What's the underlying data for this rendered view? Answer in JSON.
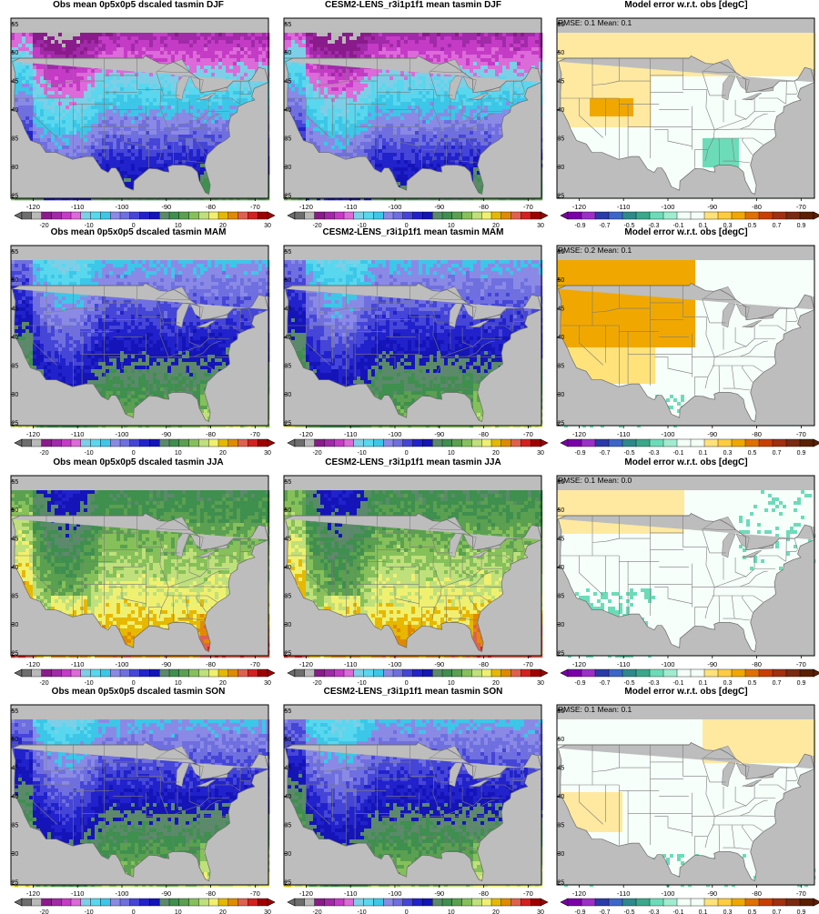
{
  "figure": {
    "variable": "tasmin",
    "obs_title_template": "Obs mean 0p5x0p5 dscaled tasmin {season}",
    "model_title_template": "CESM2-LENS_r3i1p1f1 mean tasmin {season}",
    "diff_title": "Model error w.r.t. obs [degC]"
  },
  "seasons": [
    {
      "name": "DJF",
      "obs_title": "Obs mean 0p5x0p5 dscaled tasmin DJF",
      "model_title": "CESM2-LENS_r3i1p1f1 mean tasmin DJF",
      "diff_title": "Model error w.r.t. obs [degC]",
      "stats_text": "RMSE: 0.1  Mean: 0.1",
      "rmse": 0.1,
      "mean": 0.1
    },
    {
      "name": "MAM",
      "obs_title": "Obs mean 0p5x0p5 dscaled tasmin MAM",
      "model_title": "CESM2-LENS_r3i1p1f1 mean tasmin MAM",
      "diff_title": "Model error w.r.t. obs [degC]",
      "stats_text": "RMSE: 0.2  Mean: 0.1",
      "rmse": 0.2,
      "mean": 0.1
    },
    {
      "name": "JJA",
      "obs_title": "Obs mean 0p5x0p5 dscaled tasmin JJA",
      "model_title": "CESM2-LENS_r3i1p1f1 mean tasmin JJA",
      "diff_title": "Model error w.r.t. obs [degC]",
      "stats_text": "RMSE: 0.1  Mean: 0.0",
      "rmse": 0.1,
      "mean": 0.0
    },
    {
      "name": "SON",
      "obs_title": "Obs mean 0p5x0p5 dscaled tasmin SON",
      "model_title": "CESM2-LENS_r3i1p1f1 mean tasmin SON",
      "diff_title": "Model error w.r.t. obs [degC]",
      "stats_text": "RMSE: 0.1  Mean: 0.1",
      "rmse": 0.1,
      "mean": 0.1
    }
  ],
  "chart_data": {
    "type": "heatmap",
    "map_extent": {
      "lon": [
        -125,
        -67
      ],
      "lat": [
        24.5,
        56
      ]
    },
    "x_ticks": [
      "-120",
      "-110",
      "-100",
      "-90",
      "-80",
      "-70"
    ],
    "x_tick_values": [
      -120,
      -110,
      -100,
      -90,
      -80,
      -70
    ],
    "y_ticks": [
      "25",
      "30",
      "35",
      "40",
      "45",
      "50",
      "55"
    ],
    "y_tick_values": [
      25,
      30,
      35,
      40,
      45,
      50,
      55
    ],
    "temperature_colorbar": {
      "labels": [
        "-20",
        "-10",
        "0",
        "10",
        "20",
        "30"
      ],
      "label_values": [
        -20,
        -10,
        0,
        10,
        20,
        30
      ],
      "boundaries": [
        -25,
        -22.5,
        -20,
        -17.5,
        -15,
        -12.5,
        -10,
        -7.5,
        -5,
        -2.5,
        0,
        2.5,
        5,
        7.5,
        10,
        12.5,
        15,
        17.5,
        20,
        22.5,
        25,
        27.5,
        30
      ],
      "colors": [
        "#6e6e6e",
        "#b9b9b9",
        "#8a1b8a",
        "#a02aa8",
        "#c43bc6",
        "#dc6ad8",
        "#7ccfe6",
        "#59d7ee",
        "#3cc7e8",
        "#8a8ae6",
        "#6f6fe0",
        "#4545d8",
        "#2222cc",
        "#1414b8",
        "#5a8a6a",
        "#3f8f4f",
        "#5aa050",
        "#86c05a",
        "#bfe07a",
        "#f0f070",
        "#e6b800",
        "#e08a00",
        "#e06050",
        "#d42020",
        "#a00000"
      ]
    },
    "difference_colorbar": {
      "labels": [
        "-0.9",
        "-0.7",
        "-0.5",
        "-0.3",
        "-0.1",
        "0.1",
        "0.3",
        "0.5",
        "0.7",
        "0.9"
      ],
      "label_values": [
        -0.9,
        -0.7,
        -0.5,
        -0.3,
        -0.1,
        0.1,
        0.3,
        0.5,
        0.7,
        0.9
      ],
      "colors": [
        "#7a00a8",
        "#9a30c8",
        "#2a3aa8",
        "#3c66c8",
        "#2e8a8a",
        "#3aa88a",
        "#6cdcb8",
        "#a0ecd0",
        "#f4fff8",
        "#f4fff8",
        "#ffe27a",
        "#ffcc40",
        "#f0a800",
        "#e07000",
        "#c84000",
        "#a03010",
        "#7a2a10",
        "#5a2000"
      ]
    },
    "mask_color": "#bdbdbd"
  }
}
